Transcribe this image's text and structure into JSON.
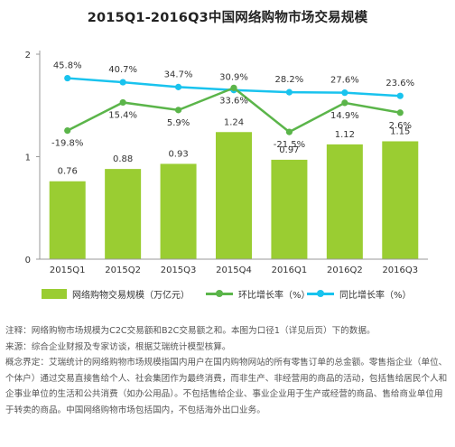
{
  "title": "2015Q1-2016Q3中国网络购物市场交易规模",
  "colors": {
    "bar": "#9acd32",
    "qoq": "#5bb54a",
    "yoy": "#19c3ee",
    "axis": "#999999"
  },
  "chart_data": {
    "type": "bar",
    "title": "2015Q1-2016Q3中国网络购物市场交易规模",
    "categories": [
      "2015Q1",
      "2015Q2",
      "2015Q3",
      "2015Q4",
      "2016Q1",
      "2016Q2",
      "2016Q3"
    ],
    "ylim": [
      0,
      2
    ],
    "yticks": [
      "0",
      "1",
      "2"
    ],
    "grid": false,
    "legend_position": "bottom",
    "series": [
      {
        "name": "网络购物交易规模（万亿元）",
        "type": "bar",
        "values": [
          0.76,
          0.88,
          0.93,
          1.24,
          0.97,
          1.12,
          1.15
        ],
        "labels": [
          "0.76",
          "0.88",
          "0.93",
          "1.24",
          "0.97",
          "1.12",
          "1.15"
        ]
      },
      {
        "name": "环比增长率（%）",
        "type": "line",
        "values": [
          -19.8,
          15.4,
          5.9,
          33.6,
          -21.5,
          14.9,
          2.6
        ],
        "labels": [
          "-19.8%",
          "15.4%",
          "5.9%",
          "33.6%",
          "-21.5%",
          "14.9%",
          "2.6%"
        ]
      },
      {
        "name": "同比增长率（%）",
        "type": "line",
        "values": [
          45.8,
          40.7,
          34.7,
          30.9,
          28.2,
          27.6,
          23.6
        ],
        "labels": [
          "45.8%",
          "40.7%",
          "34.7%",
          "30.9%",
          "28.2%",
          "27.6%",
          "23.6%"
        ]
      }
    ]
  },
  "notes": [
    "注释：网络购物市场规模为C2C交易额和B2C交易额之和。本图为口径1（详见后页）下的数据。",
    "来源：综合企业财报及专家访谈，根据艾瑞统计模型核算。",
    "概念界定：艾瑞统计的网络购物市场规模指国内用户在国内购物网站的所有零售订单的总金额。零售指企业（单位、个体户）通过交易直接售给个人、社会集团作为最终消费，而非生产、非经营用的商品的活动，包括售给居民个人和企事业单位的生活和公共消费（如办公用品）。不包括售给企业、事业企业用于生产或经营的商品、售给商业单位用于转卖的商品。中国网络购物市场包括国内，不包括海外出口业务。"
  ]
}
